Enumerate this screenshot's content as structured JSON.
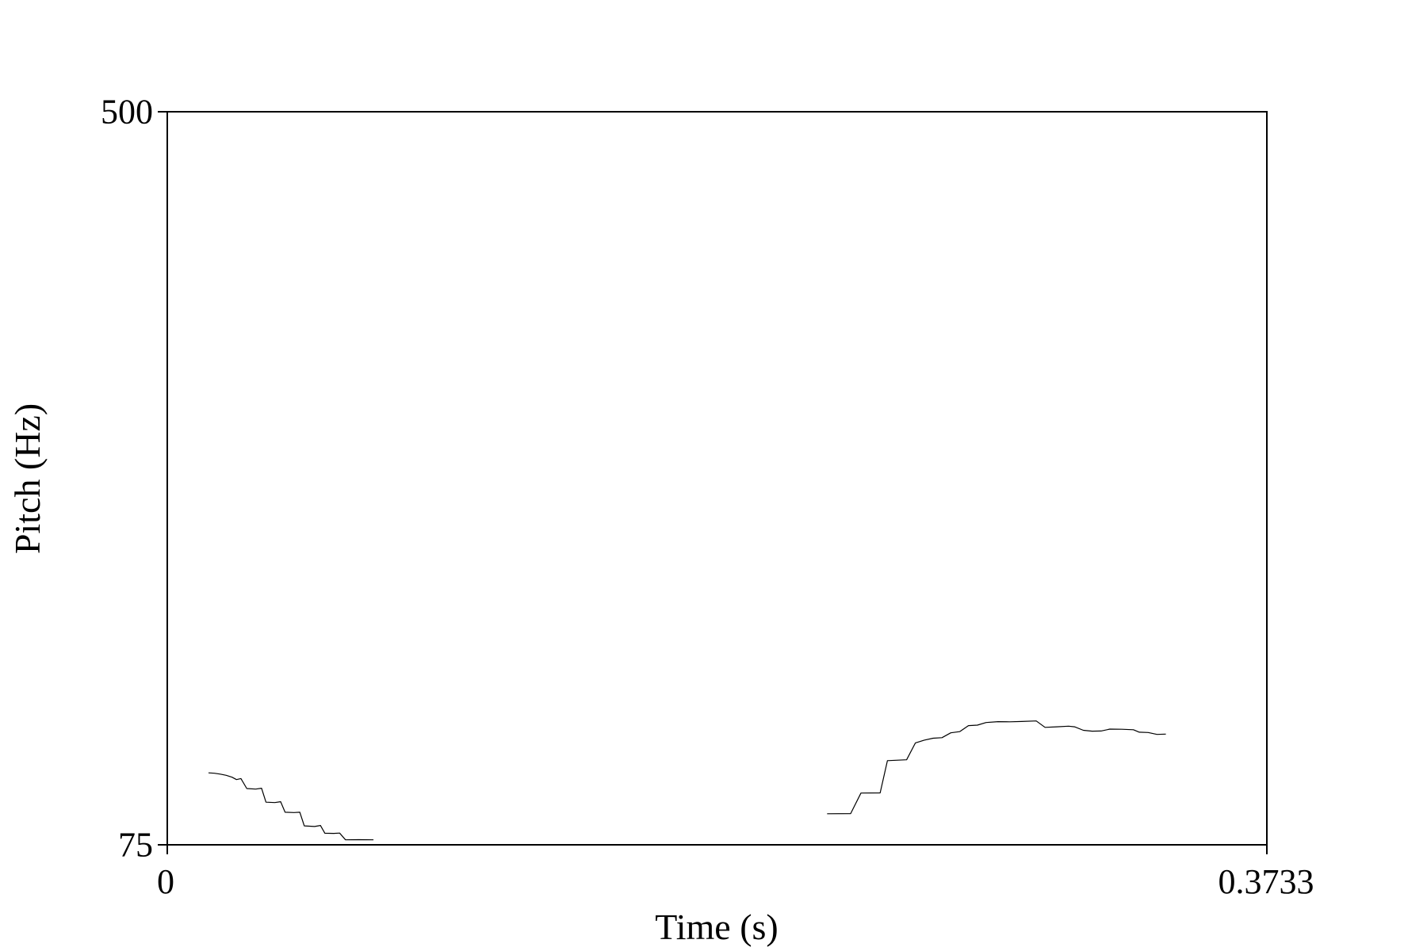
{
  "chart_data": {
    "type": "line",
    "title": "",
    "xlabel": "Time (s)",
    "ylabel": "Pitch (Hz)",
    "xlim": [
      0,
      0.3733
    ],
    "ylim": [
      75,
      500
    ],
    "x_tick_labels": [
      "0",
      "0.3733"
    ],
    "y_tick_labels": [
      "500",
      "75"
    ],
    "grid": false,
    "series": [
      {
        "values": [
          [
            0.014,
            116.7
          ],
          [
            0.016,
            116.5
          ],
          [
            0.018,
            116.0
          ],
          [
            0.02,
            115.3
          ],
          [
            0.022,
            114.2
          ],
          [
            0.0235,
            112.8
          ],
          [
            0.025,
            113.4
          ],
          [
            0.027,
            107.6
          ],
          [
            0.03,
            107.3
          ],
          [
            0.032,
            107.8
          ],
          [
            0.0335,
            99.7
          ],
          [
            0.0365,
            99.5
          ],
          [
            0.0385,
            100.0
          ],
          [
            0.04,
            93.9
          ],
          [
            0.043,
            93.7
          ],
          [
            0.045,
            93.9
          ],
          [
            0.0465,
            86.0
          ],
          [
            0.05,
            85.6
          ],
          [
            0.052,
            86.2
          ],
          [
            0.0535,
            81.7
          ],
          [
            0.0565,
            81.6
          ],
          [
            0.0585,
            81.8
          ],
          [
            0.0605,
            77.9
          ],
          [
            0.065,
            78.0
          ],
          [
            0.07,
            77.9
          ]
        ]
      },
      {
        "values": [
          [
            0.224,
            93.0
          ],
          [
            0.232,
            93.1
          ],
          [
            0.2355,
            105.0
          ],
          [
            0.242,
            105.1
          ],
          [
            0.2445,
            123.8
          ],
          [
            0.251,
            124.3
          ],
          [
            0.254,
            134.1
          ],
          [
            0.257,
            135.7
          ],
          [
            0.26,
            136.8
          ],
          [
            0.263,
            137.1
          ],
          [
            0.266,
            139.9
          ],
          [
            0.269,
            140.6
          ],
          [
            0.272,
            144.1
          ],
          [
            0.275,
            144.4
          ],
          [
            0.278,
            145.9
          ],
          [
            0.282,
            146.4
          ],
          [
            0.286,
            146.3
          ],
          [
            0.29,
            146.5
          ],
          [
            0.295,
            146.8
          ],
          [
            0.298,
            143.1
          ],
          [
            0.302,
            143.4
          ],
          [
            0.306,
            143.8
          ],
          [
            0.308,
            143.4
          ],
          [
            0.311,
            141.4
          ],
          [
            0.314,
            140.9
          ],
          [
            0.317,
            141.0
          ],
          [
            0.32,
            142.1
          ],
          [
            0.324,
            142.0
          ],
          [
            0.328,
            141.7
          ],
          [
            0.33,
            140.3
          ],
          [
            0.333,
            140.1
          ],
          [
            0.336,
            139.0
          ],
          [
            0.339,
            139.2
          ]
        ]
      }
    ]
  }
}
